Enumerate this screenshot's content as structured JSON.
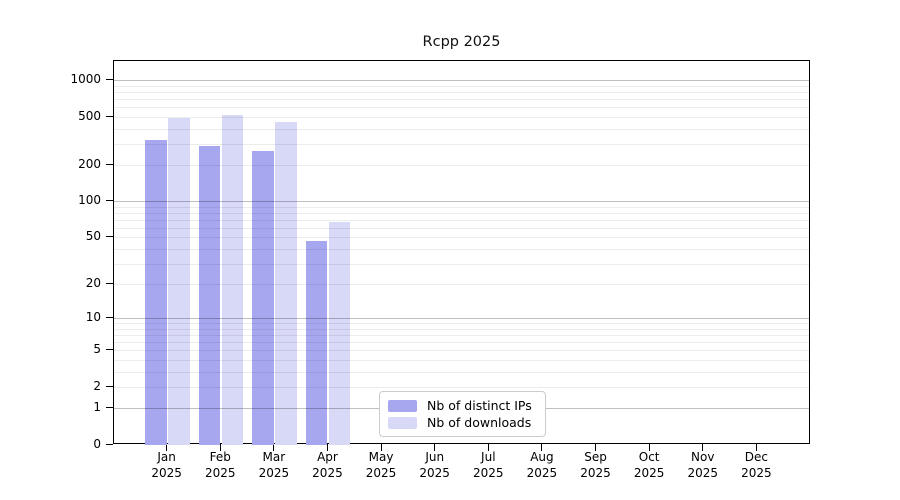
{
  "title": "Rcpp 2025",
  "legend": {
    "items": [
      {
        "label": "Nb of distinct IPs",
        "color": "#a7a7ef"
      },
      {
        "label": "Nb of downloads",
        "color": "#d8d8f7"
      }
    ]
  },
  "chart_data": {
    "type": "bar",
    "title": "Rcpp 2025",
    "categories": [
      "Jan",
      "Feb",
      "Mar",
      "Apr",
      "May",
      "Jun",
      "Jul",
      "Aug",
      "Sep",
      "Oct",
      "Nov",
      "Dec"
    ],
    "category_year": "2025",
    "series": [
      {
        "name": "Nb of distinct IPs",
        "color": "#a7a7ef",
        "values": [
          323,
          289,
          262,
          47,
          0,
          0,
          0,
          0,
          0,
          0,
          0,
          0
        ]
      },
      {
        "name": "Nb of downloads",
        "color": "#d8d8f7",
        "values": [
          490,
          522,
          457,
          67,
          0,
          0,
          0,
          0,
          0,
          0,
          0,
          0
        ]
      }
    ],
    "xlabel": "",
    "ylabel": "",
    "scale": "log1p",
    "y_tick_values": [
      0,
      1,
      2,
      5,
      10,
      20,
      50,
      100,
      200,
      500,
      1000
    ],
    "y_tick_labels": [
      "0",
      "1",
      "2",
      "5",
      "10",
      "20",
      "50",
      "100",
      "200",
      "500",
      "1000"
    ],
    "ylim": [
      0,
      1450
    ],
    "grid": "on",
    "major_grid_values": [
      1,
      10,
      100,
      1000
    ],
    "minor_grid_values": [
      2,
      3,
      4,
      5,
      6,
      7,
      8,
      9,
      20,
      30,
      40,
      50,
      60,
      70,
      80,
      90,
      200,
      300,
      400,
      500,
      600,
      700,
      800,
      900
    ],
    "legend_position": "bottom-center"
  }
}
